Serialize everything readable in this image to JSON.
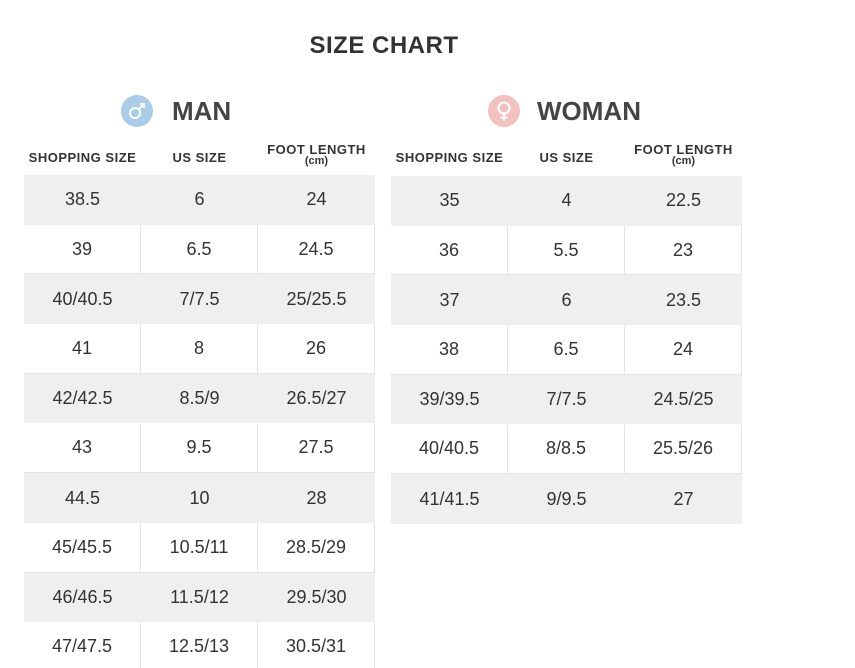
{
  "title": "SIZE CHART",
  "sections": [
    {
      "label": "MAN",
      "headers": [
        {
          "text": "SHOPPING SIZE"
        },
        {
          "text": "US SIZE"
        },
        {
          "text": "FOOT LENGTH",
          "unit": "(cm)"
        }
      ],
      "rows": [
        [
          "38.5",
          "6",
          "24"
        ],
        [
          "39",
          "6.5",
          "24.5"
        ],
        [
          "40/40.5",
          "7/7.5",
          "25/25.5"
        ],
        [
          "41",
          "8",
          "26"
        ],
        [
          "42/42.5",
          "8.5/9",
          "26.5/27"
        ],
        [
          "43",
          "9.5",
          "27.5"
        ],
        [
          "44.5",
          "10",
          "28"
        ],
        [
          "45/45.5",
          "10.5/11",
          "28.5/29"
        ],
        [
          "46/46.5",
          "11.5/12",
          "29.5/30"
        ],
        [
          "47/47.5",
          "12.5/13",
          "30.5/31"
        ]
      ]
    },
    {
      "label": "WOMAN",
      "headers": [
        {
          "text": "SHOPPING SIZE"
        },
        {
          "text": "US SIZE"
        },
        {
          "text": "FOOT LENGTH",
          "unit": "(cm)"
        }
      ],
      "rows": [
        [
          "35",
          "4",
          "22.5"
        ],
        [
          "36",
          "5.5",
          "23"
        ],
        [
          "37",
          "6",
          "23.5"
        ],
        [
          "38",
          "6.5",
          "24"
        ],
        [
          "39/39.5",
          "7/7.5",
          "24.5/25"
        ],
        [
          "40/40.5",
          "8/8.5",
          "25.5/26"
        ],
        [
          "41/41.5",
          "9/9.5",
          "27"
        ]
      ]
    }
  ]
}
